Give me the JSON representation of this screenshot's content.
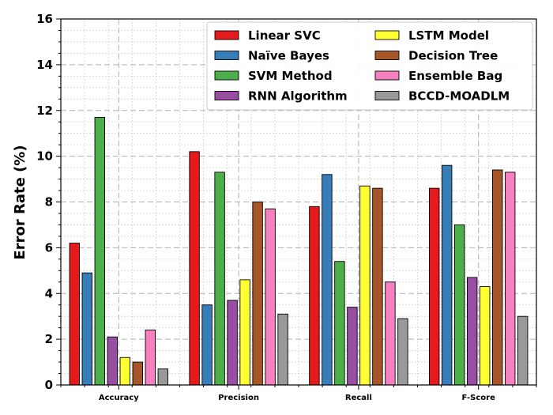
{
  "chart_data": {
    "type": "bar",
    "title": "",
    "xlabel": "",
    "ylabel": "Error Rate (%)",
    "ylim": [
      0,
      16
    ],
    "yticks": [
      0,
      2,
      4,
      6,
      8,
      10,
      12,
      14,
      16
    ],
    "grid": true,
    "legend_position": "top-right",
    "legend_columns": 2,
    "categories": [
      "Accuracy",
      "Precision",
      "Recall",
      "F-Score"
    ],
    "series": [
      {
        "name": "Linear SVC",
        "color": "#e41a1c",
        "values": [
          6.2,
          10.2,
          7.8,
          8.6
        ]
      },
      {
        "name": "Naïve Bayes",
        "color": "#377eb8",
        "values": [
          4.9,
          3.5,
          9.2,
          9.6
        ]
      },
      {
        "name": "SVM Method",
        "color": "#4daf4a",
        "values": [
          11.7,
          9.3,
          5.4,
          7.0
        ]
      },
      {
        "name": "RNN Algorithm",
        "color": "#984ea3",
        "values": [
          2.1,
          3.7,
          3.4,
          4.7
        ]
      },
      {
        "name": "LSTM Model",
        "color": "#ffff33",
        "values": [
          1.2,
          4.6,
          8.7,
          4.3
        ]
      },
      {
        "name": "Decision Tree",
        "color": "#a65628",
        "values": [
          1.0,
          8.0,
          8.6,
          9.4
        ]
      },
      {
        "name": "Ensemble Bag",
        "color": "#f781bf",
        "values": [
          2.4,
          7.7,
          4.5,
          9.3
        ]
      },
      {
        "name": "BCCD-MOADLM",
        "color": "#999999",
        "values": [
          0.7,
          3.1,
          2.9,
          3.0
        ]
      }
    ]
  }
}
